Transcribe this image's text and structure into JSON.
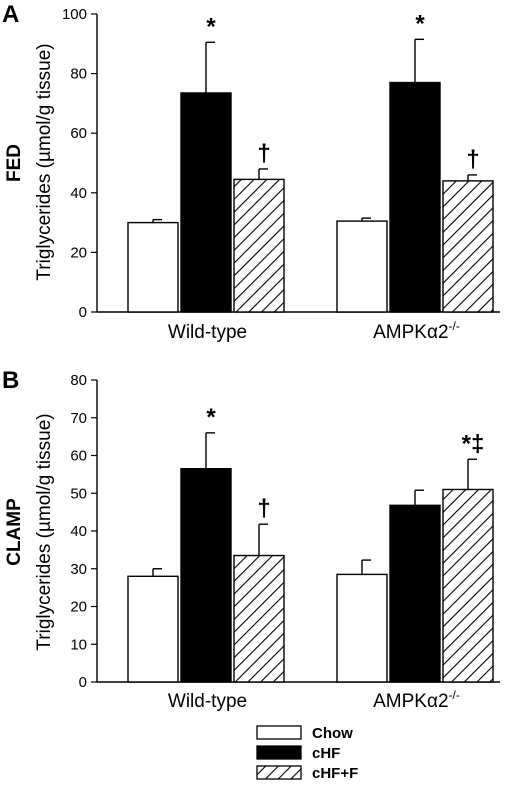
{
  "chart_data": [
    {
      "type": "bar",
      "panel": "A",
      "condition": "FED",
      "ylabel": "Triglycerides (µmol/g tissue)",
      "ylim": [
        0,
        100
      ],
      "yticks": [
        0,
        20,
        40,
        60,
        80,
        100
      ],
      "categories": [
        "Wild-type",
        "AMPKα2"
      ],
      "category_superscripts": [
        "",
        "-/-"
      ],
      "series": [
        {
          "name": "Chow",
          "values": [
            30,
            30.5
          ],
          "errors": [
            1,
            1
          ]
        },
        {
          "name": "cHF",
          "values": [
            73.5,
            77
          ],
          "errors": [
            17,
            14.5
          ]
        },
        {
          "name": "cHF+F",
          "values": [
            44.5,
            44
          ],
          "errors": [
            3.5,
            2
          ]
        }
      ],
      "annotations": [
        {
          "category": 0,
          "series": 1,
          "text": "*"
        },
        {
          "category": 0,
          "series": 2,
          "text": "†"
        },
        {
          "category": 1,
          "series": 1,
          "text": "*"
        },
        {
          "category": 1,
          "series": 2,
          "text": "†"
        }
      ]
    },
    {
      "type": "bar",
      "panel": "B",
      "condition": "CLAMP",
      "ylabel": "Triglycerides (µmol/g tissue)",
      "ylim": [
        0,
        80
      ],
      "yticks": [
        0,
        10,
        20,
        30,
        40,
        50,
        60,
        70,
        80
      ],
      "categories": [
        "Wild-type",
        "AMPKα2"
      ],
      "category_superscripts": [
        "",
        "-/-"
      ],
      "series": [
        {
          "name": "Chow",
          "values": [
            28,
            28.5
          ],
          "errors": [
            2,
            3.8
          ]
        },
        {
          "name": "cHF",
          "values": [
            56.5,
            46.8
          ],
          "errors": [
            9.5,
            4
          ]
        },
        {
          "name": "cHF+F",
          "values": [
            33.5,
            51
          ],
          "errors": [
            8.3,
            8
          ]
        }
      ],
      "annotations": [
        {
          "category": 0,
          "series": 1,
          "text": "*"
        },
        {
          "category": 0,
          "series": 2,
          "text": "†"
        },
        {
          "category": 1,
          "series": 2,
          "text": "*‡"
        }
      ]
    }
  ],
  "legend": {
    "position": "bottom-right",
    "items": [
      {
        "label": "Chow",
        "fill": "white"
      },
      {
        "label": "cHF",
        "fill": "black"
      },
      {
        "label": "cHF+F",
        "fill": "hatch"
      }
    ]
  },
  "colors": {
    "axis": "#000000",
    "chow": "#ffffff",
    "chf": "#000000",
    "hatch": "#000000"
  }
}
